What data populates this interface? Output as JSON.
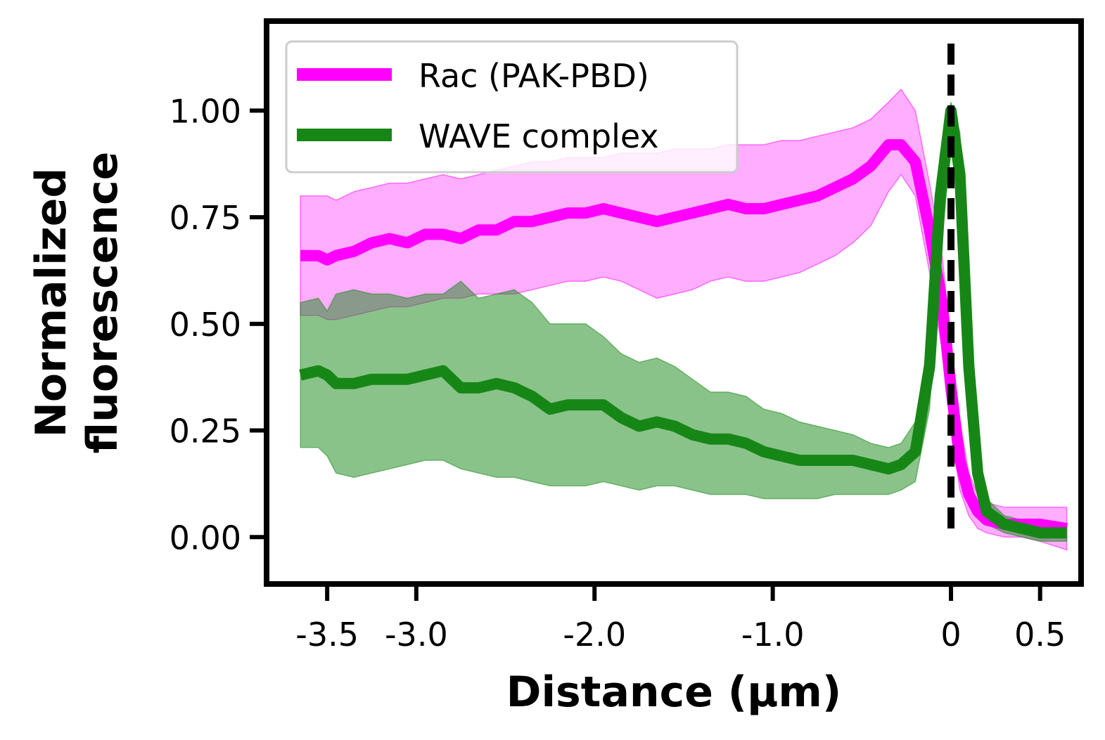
{
  "chart_data": {
    "type": "line",
    "title": "",
    "xlabel": "Distance (µm)",
    "ylabel_lines": [
      "Normalized",
      "fluorescence"
    ],
    "xlim": [
      -3.84,
      0.73
    ],
    "ylim": [
      -0.11,
      1.21
    ],
    "xticks": [
      {
        "value": -3.5,
        "label": "-3.5"
      },
      {
        "value": -3.0,
        "label": "-3.0"
      },
      {
        "value": -2.0,
        "label": "-2.0"
      },
      {
        "value": -1.0,
        "label": "-1.0"
      },
      {
        "value": 0,
        "label": "0"
      },
      {
        "value": 0.5,
        "label": "0.5"
      }
    ],
    "yticks": [
      {
        "value": 0.0,
        "label": "0.00"
      },
      {
        "value": 0.25,
        "label": "0.25"
      },
      {
        "value": 0.5,
        "label": "0.50"
      },
      {
        "value": 0.75,
        "label": "0.75"
      },
      {
        "value": 1.0,
        "label": "1.00"
      }
    ],
    "grid": false,
    "legend_position": "top-left",
    "vline": {
      "x": 0,
      "style": "dashed",
      "color": "#000000"
    },
    "series": [
      {
        "name": "Rac (PAK-PBD)",
        "color": "#ff00ff",
        "band_color": "#ff00ff",
        "x": [
          -3.65,
          -3.55,
          -3.5,
          -3.45,
          -3.35,
          -3.25,
          -3.15,
          -3.05,
          -2.95,
          -2.85,
          -2.75,
          -2.65,
          -2.55,
          -2.45,
          -2.35,
          -2.25,
          -2.15,
          -2.05,
          -1.95,
          -1.85,
          -1.75,
          -1.65,
          -1.55,
          -1.45,
          -1.35,
          -1.25,
          -1.15,
          -1.05,
          -0.95,
          -0.85,
          -0.75,
          -0.65,
          -0.55,
          -0.45,
          -0.35,
          -0.28,
          -0.2,
          -0.12,
          -0.05,
          0.0,
          0.05,
          0.1,
          0.15,
          0.2,
          0.3,
          0.4,
          0.5,
          0.65
        ],
        "y": [
          0.66,
          0.66,
          0.65,
          0.66,
          0.67,
          0.69,
          0.7,
          0.69,
          0.71,
          0.71,
          0.7,
          0.72,
          0.72,
          0.74,
          0.74,
          0.75,
          0.76,
          0.76,
          0.77,
          0.76,
          0.75,
          0.74,
          0.75,
          0.76,
          0.77,
          0.78,
          0.77,
          0.77,
          0.78,
          0.79,
          0.8,
          0.82,
          0.84,
          0.87,
          0.92,
          0.92,
          0.88,
          0.72,
          0.55,
          0.35,
          0.18,
          0.1,
          0.06,
          0.04,
          0.03,
          0.03,
          0.03,
          0.02
        ],
        "lower": [
          0.52,
          0.52,
          0.51,
          0.51,
          0.52,
          0.53,
          0.54,
          0.54,
          0.55,
          0.56,
          0.56,
          0.57,
          0.57,
          0.57,
          0.58,
          0.59,
          0.6,
          0.6,
          0.61,
          0.6,
          0.58,
          0.56,
          0.57,
          0.58,
          0.6,
          0.61,
          0.6,
          0.6,
          0.61,
          0.62,
          0.64,
          0.66,
          0.69,
          0.73,
          0.81,
          0.85,
          0.8,
          0.62,
          0.44,
          0.25,
          0.11,
          0.05,
          0.02,
          0.01,
          0.0,
          0.0,
          -0.01,
          -0.03
        ],
        "upper": [
          0.8,
          0.8,
          0.8,
          0.79,
          0.81,
          0.82,
          0.83,
          0.83,
          0.84,
          0.85,
          0.84,
          0.85,
          0.86,
          0.87,
          0.88,
          0.88,
          0.89,
          0.89,
          0.89,
          0.9,
          0.9,
          0.9,
          0.91,
          0.91,
          0.91,
          0.92,
          0.92,
          0.92,
          0.93,
          0.93,
          0.94,
          0.95,
          0.96,
          0.98,
          1.02,
          1.05,
          1.0,
          0.83,
          0.66,
          0.46,
          0.27,
          0.15,
          0.1,
          0.08,
          0.07,
          0.07,
          0.07,
          0.07
        ]
      },
      {
        "name": "WAVE complex",
        "color": "#168716",
        "band_color": "#168716",
        "x": [
          -3.65,
          -3.55,
          -3.5,
          -3.45,
          -3.35,
          -3.25,
          -3.15,
          -3.05,
          -2.95,
          -2.85,
          -2.75,
          -2.65,
          -2.55,
          -2.45,
          -2.35,
          -2.25,
          -2.15,
          -2.05,
          -1.95,
          -1.85,
          -1.75,
          -1.65,
          -1.55,
          -1.45,
          -1.35,
          -1.25,
          -1.15,
          -1.05,
          -0.95,
          -0.85,
          -0.75,
          -0.65,
          -0.55,
          -0.45,
          -0.35,
          -0.28,
          -0.2,
          -0.12,
          -0.06,
          0.0,
          0.05,
          0.1,
          0.15,
          0.2,
          0.3,
          0.4,
          0.5,
          0.65
        ],
        "y": [
          0.38,
          0.39,
          0.38,
          0.36,
          0.36,
          0.37,
          0.37,
          0.37,
          0.38,
          0.39,
          0.35,
          0.35,
          0.36,
          0.35,
          0.33,
          0.3,
          0.31,
          0.31,
          0.31,
          0.28,
          0.26,
          0.27,
          0.26,
          0.24,
          0.23,
          0.23,
          0.22,
          0.2,
          0.19,
          0.18,
          0.18,
          0.18,
          0.18,
          0.17,
          0.16,
          0.17,
          0.2,
          0.4,
          0.8,
          1.0,
          0.85,
          0.4,
          0.15,
          0.06,
          0.03,
          0.02,
          0.01,
          0.01
        ],
        "lower": [
          0.21,
          0.21,
          0.19,
          0.15,
          0.14,
          0.15,
          0.16,
          0.17,
          0.18,
          0.18,
          0.16,
          0.15,
          0.14,
          0.14,
          0.13,
          0.12,
          0.12,
          0.12,
          0.13,
          0.12,
          0.11,
          0.12,
          0.12,
          0.11,
          0.1,
          0.1,
          0.1,
          0.09,
          0.09,
          0.09,
          0.09,
          0.1,
          0.1,
          0.1,
          0.1,
          0.11,
          0.13,
          0.3,
          0.65,
          0.92,
          0.75,
          0.33,
          0.11,
          0.03,
          0.01,
          0.0,
          -0.01,
          -0.01
        ],
        "upper": [
          0.55,
          0.56,
          0.53,
          0.57,
          0.58,
          0.57,
          0.57,
          0.56,
          0.57,
          0.57,
          0.6,
          0.56,
          0.57,
          0.58,
          0.55,
          0.5,
          0.5,
          0.5,
          0.47,
          0.43,
          0.41,
          0.42,
          0.4,
          0.37,
          0.34,
          0.34,
          0.33,
          0.3,
          0.29,
          0.27,
          0.26,
          0.25,
          0.24,
          0.22,
          0.21,
          0.22,
          0.27,
          0.48,
          0.9,
          1.02,
          0.95,
          0.48,
          0.2,
          0.09,
          0.05,
          0.04,
          0.03,
          0.03
        ]
      }
    ]
  }
}
